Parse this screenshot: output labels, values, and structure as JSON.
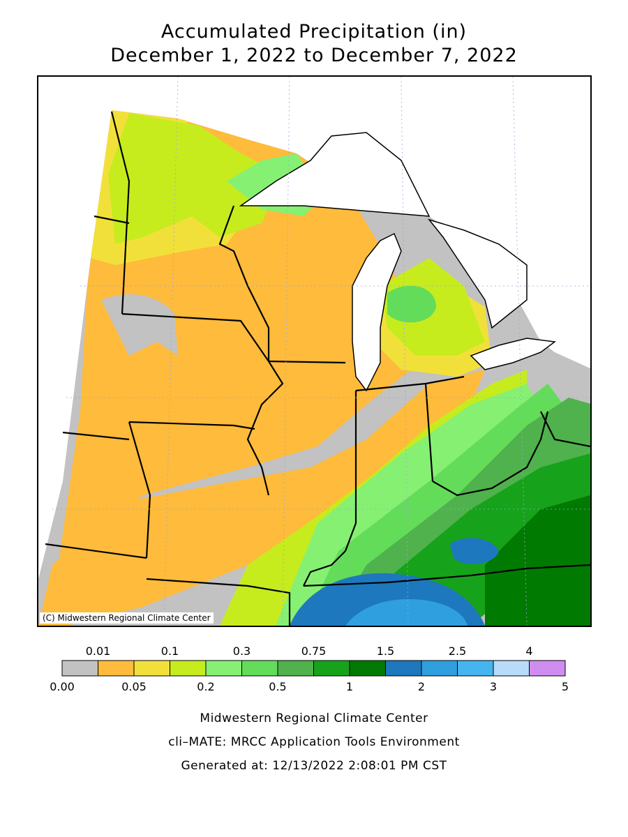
{
  "title_line1": "Accumulated Precipitation (in)",
  "title_line2": "December 1, 2022 to December 7, 2022",
  "map": {
    "copyright": "(C) Midwestern Regional Climate Center",
    "land_color": "#c2c2c2",
    "water_color": "#ffffff"
  },
  "legend": {
    "top_labels": [
      "0.01",
      "0.1",
      "0.3",
      "0.75",
      "1.5",
      "2.5",
      "4"
    ],
    "bottom_labels": [
      "0.00",
      "0.05",
      "0.2",
      "0.5",
      "1",
      "2",
      "3",
      "5"
    ],
    "colors": [
      "#c2c2c2",
      "#ffbb3b",
      "#f2e03a",
      "#c6ec1e",
      "#86f073",
      "#63dc5a",
      "#4fb24c",
      "#17a21b",
      "#017a01",
      "#1d78be",
      "#2f9fdf",
      "#45b5ef",
      "#b7dbf8",
      "#d08df0"
    ]
  },
  "footer": {
    "line1": "Midwestern Regional Climate Center",
    "line2": "cli–MATE: MRCC Application Tools Environment",
    "line3": "Generated at: 12/13/2022 2:08:01 PM CST"
  }
}
